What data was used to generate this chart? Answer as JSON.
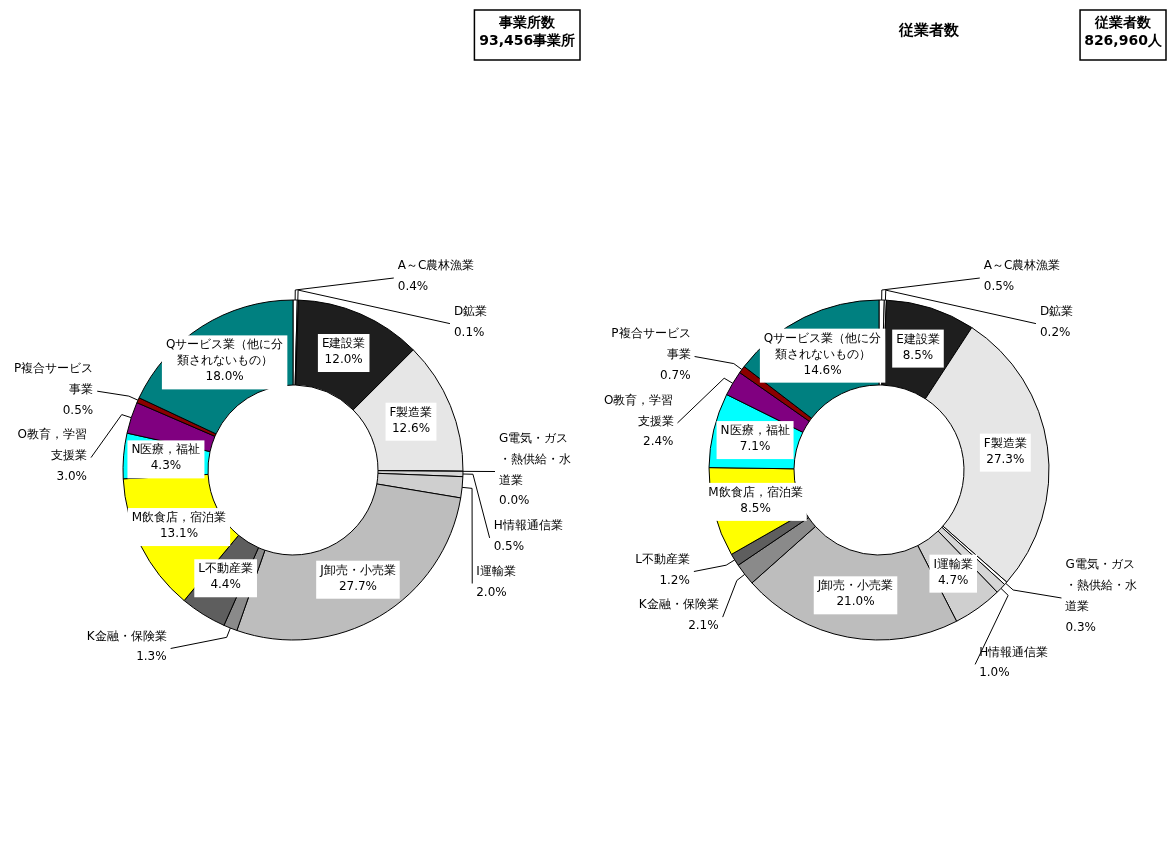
{
  "chart_data": [
    {
      "type": "donut",
      "annotations": [
        "事業所数",
        "93,456事業所"
      ],
      "categories": [
        "A～C農林漁業",
        "D鉱業",
        "E建設業",
        "F製造業",
        "G電気・ガス・熱供給・水道業",
        "H情報通信業",
        "I運輸業",
        "J卸売・小売業",
        "K金融・保険業",
        "L不動産業",
        "M飲食店，宿泊業",
        "N医療，福祉",
        "O教育，学習支援業",
        "P複合サービス事業",
        "Qサービス業（他に分類されないもの）"
      ],
      "values": [
        0.4,
        0.1,
        12.0,
        12.6,
        0.0,
        0.5,
        2.0,
        27.7,
        1.3,
        4.4,
        13.1,
        4.3,
        3.0,
        0.5,
        18.0
      ],
      "value_labels": [
        "0.4%",
        "0.1%",
        "12.0%",
        "12.6%",
        "0.0%",
        "0.5%",
        "2.0%",
        "27.7%",
        "1.3%",
        "4.4%",
        "13.1%",
        "4.3%",
        "3.0%",
        "0.5%",
        "18.0%"
      ],
      "colors": [
        "#ffffff",
        "#f0f0f0",
        "#1e1e1e",
        "#e6e6e6",
        "#ffffff",
        "#d6d6d6",
        "#cfcfcf",
        "#bdbdbd",
        "#8a8a8a",
        "#5e5e5e",
        "#ffff00",
        "#00ffff",
        "#800080",
        "#8b0000",
        "#008080"
      ]
    },
    {
      "type": "donut",
      "title": "従業者数",
      "annotations": [
        "従業者数",
        "826,960人"
      ],
      "categories": [
        "A～C農林漁業",
        "D鉱業",
        "E建設業",
        "F製造業",
        "G電気・ガス・熱供給・水道業",
        "H情報通信業",
        "I運輸業",
        "J卸売・小売業",
        "K金融・保険業",
        "L不動産業",
        "M飲食店，宿泊業",
        "N医療，福祉",
        "O教育，学習支援業",
        "P複合サービス事業",
        "Qサービス業（他に分類されないもの）"
      ],
      "values": [
        0.5,
        0.2,
        8.5,
        27.3,
        0.3,
        1.0,
        4.7,
        21.0,
        2.1,
        1.2,
        8.5,
        7.1,
        2.4,
        0.7,
        14.6
      ],
      "value_labels": [
        "0.5%",
        "0.2%",
        "8.5%",
        "27.3%",
        "0.3%",
        "1.0%",
        "4.7%",
        "21.0%",
        "2.1%",
        "1.2%",
        "8.5%",
        "7.1%",
        "2.4%",
        "0.7%",
        "14.6%"
      ],
      "colors": [
        "#ffffff",
        "#f0f0f0",
        "#1e1e1e",
        "#e6e6e6",
        "#ffffff",
        "#d6d6d6",
        "#cfcfcf",
        "#bdbdbd",
        "#8a8a8a",
        "#5e5e5e",
        "#ffff00",
        "#00ffff",
        "#800080",
        "#8b0000",
        "#008080"
      ]
    }
  ]
}
